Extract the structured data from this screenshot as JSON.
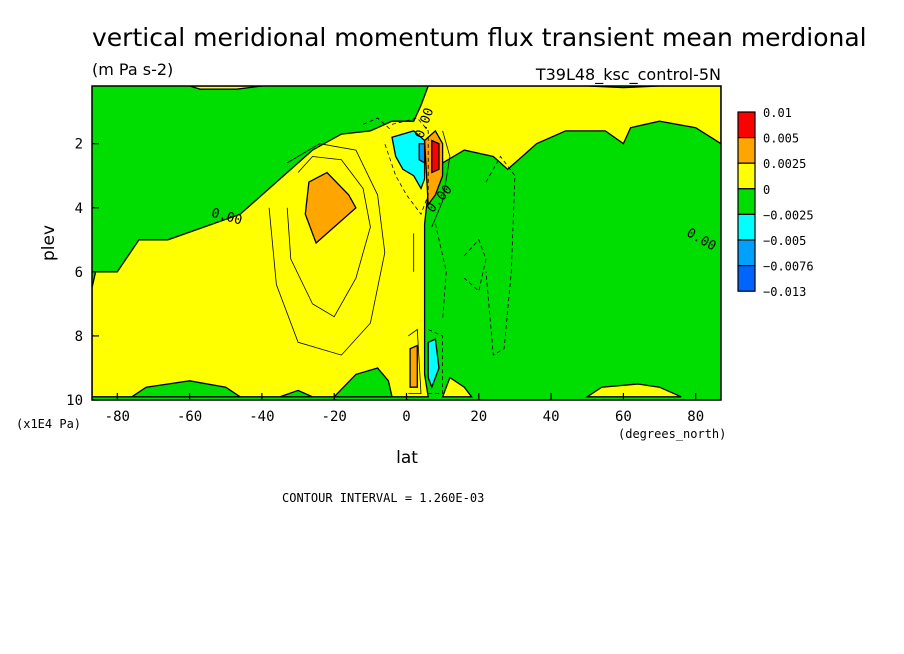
{
  "chart_data": {
    "type": "contour",
    "title": "vertical meridional momentum flux transient mean merdional",
    "units": "(m Pa s-2)",
    "run_label": "T39L48_ksc_control-5N",
    "xlabel": "lat",
    "xunits": "(degrees_north)",
    "ylabel": "plev",
    "yunits": "(x1E4 Pa)",
    "xlim": [
      -87,
      87
    ],
    "ylim": [
      10,
      0.2
    ],
    "x_ticks": [
      -80,
      -60,
      -40,
      -20,
      0,
      20,
      40,
      60,
      80
    ],
    "y_ticks": [
      2,
      4,
      6,
      8,
      10
    ],
    "contour_interval_text": "CONTOUR INTERVAL = 1.260E-03",
    "contour_labels": [
      "0.00",
      "0.00",
      "0.00",
      "0.00"
    ],
    "legend": {
      "placement": "right",
      "levels": [
        {
          "label": "0.01",
          "color": "#ff0000"
        },
        {
          "label": "0.005",
          "color": "#ffa500"
        },
        {
          "label": "0.0025",
          "color": "#ffff00"
        },
        {
          "label": "0",
          "color": "#00dd00"
        },
        {
          "label": "−0.0025",
          "color": "#00ffff"
        },
        {
          "label": "−0.005",
          "color": "#00a0ff"
        },
        {
          "label": "−0.0076",
          "color": "#0064ff"
        },
        {
          "label": "−0.013",
          "color": ""
        }
      ]
    },
    "regions": [
      {
        "name": "yellow-tongue-south",
        "level": "0 to 0.0025",
        "color": "#ffff00",
        "polygon": [
          [
            -87,
            6.5
          ],
          [
            -86,
            6.0
          ],
          [
            -80,
            6.0
          ],
          [
            -74,
            5.0
          ],
          [
            -66,
            5.0
          ],
          [
            -56,
            4.6
          ],
          [
            -46,
            4.2
          ],
          [
            -36,
            3.2
          ],
          [
            -26,
            2.2
          ],
          [
            -18,
            1.7
          ],
          [
            -10,
            1.6
          ],
          [
            -4,
            1.3
          ],
          [
            2,
            1.3
          ],
          [
            4,
            0.8
          ],
          [
            6,
            0.2
          ],
          [
            18,
            0.2
          ],
          [
            50,
            0.2
          ],
          [
            60,
            0.25
          ],
          [
            70,
            0.2
          ],
          [
            87,
            0.2
          ],
          [
            87,
            2.0
          ],
          [
            80,
            1.5
          ],
          [
            70,
            1.3
          ],
          [
            62,
            1.5
          ],
          [
            60,
            2.0
          ],
          [
            55,
            1.6
          ],
          [
            44,
            1.6
          ],
          [
            36,
            2.0
          ],
          [
            32,
            2.4
          ],
          [
            28,
            2.8
          ],
          [
            24,
            2.4
          ],
          [
            16,
            2.2
          ],
          [
            10,
            2.6
          ],
          [
            6,
            3.5
          ],
          [
            5,
            4.5
          ],
          [
            5,
            7.5
          ],
          [
            5,
            9.2
          ],
          [
            6,
            9.9
          ],
          [
            -87,
            9.9
          ]
        ]
      },
      {
        "name": "orange-blob-south",
        "level": "0.0025 to 0.005",
        "color": "#ffa500",
        "polygon": [
          [
            -27,
            3.2
          ],
          [
            -22,
            2.9
          ],
          [
            -16,
            3.6
          ],
          [
            -14,
            4.0
          ],
          [
            -20,
            4.6
          ],
          [
            -25,
            5.1
          ],
          [
            -28,
            4.2
          ]
        ]
      },
      {
        "name": "orange-tower-equator",
        "level": "0.0025 to 0.005",
        "color": "#ffa500",
        "polygon": [
          [
            5,
            1.9
          ],
          [
            8,
            1.6
          ],
          [
            10,
            2.0
          ],
          [
            10,
            3.0
          ],
          [
            8,
            3.6
          ],
          [
            6,
            3.9
          ]
        ]
      },
      {
        "name": "red-core-equator",
        "level": "0.005 to 0.01",
        "color": "#ff0000",
        "polygon": [
          [
            7,
            1.9
          ],
          [
            9,
            2.0
          ],
          [
            9,
            2.8
          ],
          [
            7,
            2.9
          ]
        ]
      },
      {
        "name": "orange-blob-low",
        "level": "0.0025 to 0.005",
        "color": "#ffa500",
        "polygon": [
          [
            1,
            8.4
          ],
          [
            3,
            8.3
          ],
          [
            3,
            9.6
          ],
          [
            1,
            9.6
          ]
        ]
      },
      {
        "name": "cyan-patch-upper",
        "level": "-0.0025 to -0.005",
        "color": "#00ffff",
        "polygon": [
          [
            -4,
            1.8
          ],
          [
            2,
            1.6
          ],
          [
            5,
            1.9
          ],
          [
            5,
            3.1
          ],
          [
            4,
            3.4
          ],
          [
            2,
            3.0
          ],
          [
            -1,
            2.8
          ],
          [
            -3,
            2.4
          ]
        ]
      },
      {
        "name": "blue-core-upper",
        "level": "-0.005 to -0.0076",
        "color": "#00a0ff",
        "polygon": [
          [
            3.5,
            2.0
          ],
          [
            5,
            2.0
          ],
          [
            5,
            2.6
          ],
          [
            3.5,
            2.5
          ]
        ]
      },
      {
        "name": "cyan-patch-lower",
        "level": "-0.0025 to -0.005",
        "color": "#00ffff",
        "polygon": [
          [
            6,
            8.2
          ],
          [
            8,
            8.1
          ],
          [
            9,
            9.0
          ],
          [
            7,
            9.6
          ],
          [
            6,
            9.3
          ]
        ]
      },
      {
        "name": "green-bump-a",
        "level": "-0.0025 to 0",
        "color": "#00dd00",
        "polygon": [
          [
            -76,
            9.9
          ],
          [
            -72,
            9.6
          ],
          [
            -60,
            9.4
          ],
          [
            -50,
            9.6
          ],
          [
            -46,
            9.9
          ]
        ]
      },
      {
        "name": "green-bump-b",
        "level": "-0.0025 to 0",
        "color": "#00dd00",
        "polygon": [
          [
            -20,
            9.9
          ],
          [
            -14,
            9.2
          ],
          [
            -8,
            9.0
          ],
          [
            -5,
            9.4
          ],
          [
            -4,
            9.9
          ]
        ]
      },
      {
        "name": "green-bump-c",
        "level": "-0.0025 to 0",
        "color": "#00dd00",
        "polygon": [
          [
            -35,
            9.9
          ],
          [
            -30,
            9.7
          ],
          [
            -26,
            9.9
          ]
        ]
      },
      {
        "name": "yellow-bump-north-low",
        "level": "0 to 0.0025",
        "color": "#ffff00",
        "polygon": [
          [
            10,
            9.9
          ],
          [
            12,
            9.3
          ],
          [
            16,
            9.6
          ],
          [
            18,
            9.9
          ]
        ]
      },
      {
        "name": "yellow-bump-north-60",
        "level": "0 to 0.0025",
        "color": "#ffff00",
        "polygon": [
          [
            50,
            9.9
          ],
          [
            54,
            9.6
          ],
          [
            64,
            9.5
          ],
          [
            70,
            9.6
          ],
          [
            76,
            9.9
          ]
        ]
      },
      {
        "name": "yellow-cap-top-40",
        "level": "0 to 0.0025",
        "color": "#ffff00",
        "polygon": [
          [
            -60,
            0.2
          ],
          [
            -57,
            0.3
          ],
          [
            -47,
            0.3
          ],
          [
            -40,
            0.2
          ]
        ]
      }
    ]
  }
}
